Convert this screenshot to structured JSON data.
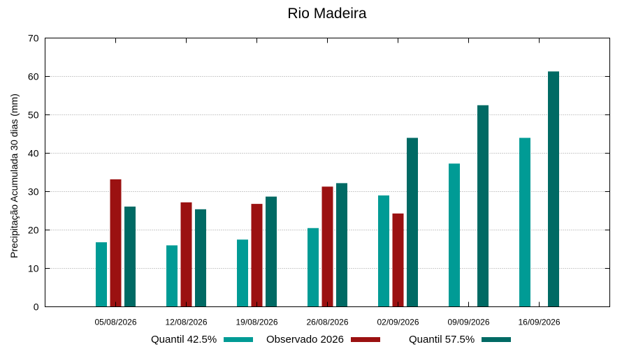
{
  "chart_data": {
    "type": "bar",
    "title": "Rio Madeira",
    "xlabel": "",
    "ylabel": "Precipitação Acumulada 30 dias (mm)",
    "ylim": [
      0,
      70
    ],
    "yticks": [
      0,
      10,
      20,
      30,
      40,
      50,
      60,
      70
    ],
    "grid": "horizontal dotted",
    "legend_position": "bottom",
    "categories": [
      "05/08/2026",
      "12/08/2026",
      "19/08/2026",
      "26/08/2026",
      "02/09/2026",
      "09/09/2026",
      "16/09/2026"
    ],
    "series": [
      {
        "name": "Quantil 42.5%",
        "color": "#009b95",
        "values": [
          16.8,
          16.0,
          17.5,
          20.5,
          29.0,
          37.3,
          44.0
        ]
      },
      {
        "name": "Observado 2026",
        "color": "#9b1111",
        "values": [
          33.2,
          27.2,
          26.8,
          31.3,
          24.3,
          null,
          null
        ]
      },
      {
        "name": "Quantil 57.5%",
        "color": "#006a64",
        "values": [
          26.1,
          25.4,
          28.7,
          32.2,
          44.0,
          52.5,
          61.3
        ]
      }
    ]
  }
}
